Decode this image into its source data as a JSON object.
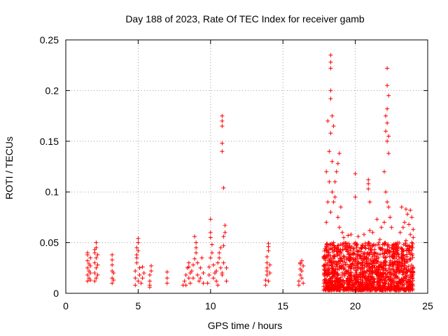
{
  "chart_data": {
    "type": "scatter",
    "title": "Day 188 of 2023, Rate Of TEC Index for receiver gamb",
    "xlabel": "GPS time / hours",
    "ylabel": "ROTI / TECUs",
    "xlim": [
      0,
      25
    ],
    "ylim": [
      0,
      0.25
    ],
    "xticks": [
      0,
      5,
      10,
      15,
      20,
      25
    ],
    "yticks": [
      0,
      0.05,
      0.1,
      0.15,
      0.2,
      0.25
    ],
    "xtick_labels": [
      "0",
      "5",
      "10",
      "15",
      "20",
      "25"
    ],
    "ytick_labels": [
      "0",
      "0.05",
      "0.1",
      "0.15",
      "0.2",
      "0.25"
    ],
    "grid": true,
    "marker": "+",
    "series": [
      {
        "name": "ROTI",
        "color": "#ff0000",
        "points": [
          [
            1.5,
            0.012
          ],
          [
            1.5,
            0.018
          ],
          [
            1.5,
            0.025
          ],
          [
            1.5,
            0.032
          ],
          [
            1.5,
            0.038
          ],
          [
            1.6,
            0.015
          ],
          [
            1.6,
            0.022
          ],
          [
            1.6,
            0.029
          ],
          [
            1.7,
            0.013
          ],
          [
            1.7,
            0.02
          ],
          [
            1.7,
            0.027
          ],
          [
            1.7,
            0.035
          ],
          [
            1.5,
            0.04
          ],
          [
            2.0,
            0.012
          ],
          [
            2.0,
            0.02
          ],
          [
            2.0,
            0.03
          ],
          [
            2.0,
            0.04
          ],
          [
            2.1,
            0.015
          ],
          [
            2.1,
            0.025
          ],
          [
            2.1,
            0.035
          ],
          [
            2.1,
            0.045
          ],
          [
            2.1,
            0.05
          ],
          [
            2.2,
            0.018
          ],
          [
            2.2,
            0.028
          ],
          [
            2.2,
            0.038
          ],
          [
            2.0,
            0.043
          ],
          [
            3.2,
            0.01
          ],
          [
            3.2,
            0.015
          ],
          [
            3.2,
            0.022
          ],
          [
            3.2,
            0.028
          ],
          [
            3.3,
            0.013
          ],
          [
            3.3,
            0.02
          ],
          [
            3.2,
            0.033
          ],
          [
            3.2,
            0.038
          ],
          [
            4.8,
            0.008
          ],
          [
            4.8,
            0.015
          ],
          [
            4.8,
            0.022
          ],
          [
            4.9,
            0.03
          ],
          [
            4.9,
            0.038
          ],
          [
            4.9,
            0.045
          ],
          [
            5.0,
            0.05
          ],
          [
            5.0,
            0.054
          ],
          [
            5.0,
            0.012
          ],
          [
            5.1,
            0.018
          ],
          [
            5.1,
            0.025
          ],
          [
            5.2,
            0.01
          ],
          [
            5.3,
            0.015
          ],
          [
            5.4,
            0.02
          ],
          [
            5.3,
            0.026
          ],
          [
            5.0,
            0.042
          ],
          [
            4.9,
            0.035
          ],
          [
            5.8,
            0.006
          ],
          [
            5.8,
            0.012
          ],
          [
            5.8,
            0.018
          ],
          [
            5.9,
            0.022
          ],
          [
            5.9,
            0.027
          ],
          [
            5.8,
            0.008
          ],
          [
            7.0,
            0.01
          ],
          [
            7.0,
            0.015
          ],
          [
            7.0,
            0.021
          ],
          [
            8.1,
            0.008
          ],
          [
            8.2,
            0.012
          ],
          [
            8.3,
            0.018
          ],
          [
            8.4,
            0.025
          ],
          [
            8.5,
            0.03
          ],
          [
            8.5,
            0.015
          ],
          [
            8.6,
            0.01
          ],
          [
            8.7,
            0.022
          ],
          [
            8.8,
            0.028
          ],
          [
            8.9,
            0.034
          ],
          [
            9.0,
            0.04
          ],
          [
            8.9,
            0.056
          ],
          [
            9.0,
            0.05
          ],
          [
            9.1,
            0.018
          ],
          [
            9.2,
            0.012
          ],
          [
            9.3,
            0.025
          ],
          [
            9.4,
            0.035
          ],
          [
            9.5,
            0.02
          ],
          [
            9.0,
            0.045
          ],
          [
            9.1,
            0.03
          ],
          [
            8.8,
            0.015
          ],
          [
            8.6,
            0.02
          ],
          [
            8.3,
            0.008
          ],
          [
            8.5,
            0.026
          ],
          [
            9.3,
            0.015
          ],
          [
            9.5,
            0.01
          ],
          [
            9.8,
            0.01
          ],
          [
            9.9,
            0.018
          ],
          [
            9.9,
            0.026
          ],
          [
            10.0,
            0.035
          ],
          [
            10.0,
            0.055
          ],
          [
            10.0,
            0.06
          ],
          [
            10.0,
            0.073
          ],
          [
            10.1,
            0.048
          ],
          [
            10.1,
            0.04
          ],
          [
            10.2,
            0.028
          ],
          [
            10.2,
            0.015
          ],
          [
            10.3,
            0.02
          ],
          [
            10.4,
            0.012
          ],
          [
            10.5,
            0.03
          ],
          [
            10.6,
            0.035
          ],
          [
            10.6,
            0.04
          ],
          [
            10.7,
            0.045
          ],
          [
            10.7,
            0.025
          ],
          [
            10.8,
            0.02
          ],
          [
            10.8,
            0.018
          ],
          [
            10.9,
            0.03
          ],
          [
            10.9,
            0.047
          ],
          [
            10.9,
            0.056
          ],
          [
            11.0,
            0.06
          ],
          [
            11.0,
            0.067
          ],
          [
            10.9,
            0.104
          ],
          [
            10.8,
            0.14
          ],
          [
            10.8,
            0.148
          ],
          [
            10.8,
            0.165
          ],
          [
            10.8,
            0.17
          ],
          [
            10.8,
            0.175
          ],
          [
            11.1,
            0.012
          ],
          [
            11.1,
            0.025
          ],
          [
            10.5,
            0.008
          ],
          [
            10.4,
            0.022
          ],
          [
            13.8,
            0.008
          ],
          [
            13.8,
            0.013
          ],
          [
            13.9,
            0.018
          ],
          [
            13.9,
            0.025
          ],
          [
            13.9,
            0.03
          ],
          [
            13.9,
            0.036
          ],
          [
            14.0,
            0.042
          ],
          [
            14.0,
            0.046
          ],
          [
            14.0,
            0.049
          ],
          [
            14.0,
            0.012
          ],
          [
            14.1,
            0.02
          ],
          [
            14.1,
            0.028
          ],
          [
            13.9,
            0.022
          ],
          [
            16.1,
            0.008
          ],
          [
            16.1,
            0.012
          ],
          [
            16.2,
            0.018
          ],
          [
            16.2,
            0.024
          ],
          [
            16.2,
            0.029
          ],
          [
            16.3,
            0.032
          ],
          [
            16.3,
            0.015
          ],
          [
            16.3,
            0.022
          ],
          [
            16.4,
            0.01
          ],
          [
            16.4,
            0.027
          ],
          [
            16.2,
            0.03
          ],
          [
            18.3,
            0.235
          ],
          [
            18.3,
            0.228
          ],
          [
            18.3,
            0.222
          ],
          [
            18.3,
            0.2
          ],
          [
            18.3,
            0.192
          ],
          [
            18.4,
            0.175
          ],
          [
            18.5,
            0.165
          ],
          [
            18.1,
            0.17
          ],
          [
            18.3,
            0.158
          ],
          [
            18.2,
            0.14
          ],
          [
            18.4,
            0.13
          ],
          [
            18.0,
            0.12
          ],
          [
            18.2,
            0.11
          ],
          [
            18.4,
            0.1
          ],
          [
            18.1,
            0.09
          ],
          [
            18.3,
            0.08
          ],
          [
            18.0,
            0.07
          ],
          [
            18.5,
            0.09
          ],
          [
            18.6,
            0.095
          ],
          [
            18.7,
            0.12
          ],
          [
            18.8,
            0.128
          ],
          [
            18.9,
            0.138
          ],
          [
            18.6,
            0.11
          ],
          [
            18.8,
            0.075
          ],
          [
            19.0,
            0.085
          ],
          [
            19.1,
            0.06
          ],
          [
            18.5,
            0.05
          ],
          [
            18.9,
            0.065
          ],
          [
            20.0,
            0.118
          ],
          [
            20.0,
            0.095
          ],
          [
            20.9,
            0.112
          ],
          [
            20.9,
            0.108
          ],
          [
            20.9,
            0.103
          ],
          [
            21.0,
            0.09
          ],
          [
            22.2,
            0.222
          ],
          [
            22.2,
            0.205
          ],
          [
            22.3,
            0.195
          ],
          [
            22.2,
            0.182
          ],
          [
            22.1,
            0.175
          ],
          [
            22.2,
            0.168
          ],
          [
            22.3,
            0.155
          ],
          [
            22.1,
            0.16
          ],
          [
            22.2,
            0.15
          ],
          [
            22.3,
            0.138
          ],
          [
            22.0,
            0.12
          ],
          [
            22.1,
            0.1
          ],
          [
            22.2,
            0.09
          ],
          [
            22.3,
            0.085
          ],
          [
            22.4,
            0.075
          ],
          [
            22.0,
            0.07
          ],
          [
            22.5,
            0.065
          ],
          [
            23.2,
            0.085
          ],
          [
            23.5,
            0.083
          ],
          [
            23.8,
            0.082
          ],
          [
            23.6,
            0.078
          ],
          [
            23.9,
            0.075
          ],
          [
            23.4,
            0.07
          ],
          [
            23.7,
            0.068
          ],
          [
            23.3,
            0.065
          ],
          [
            24.0,
            0.063
          ],
          [
            23.1,
            0.06
          ],
          [
            23.8,
            0.058
          ],
          [
            24.0,
            0.055
          ],
          [
            23.5,
            0.052
          ],
          [
            23.9,
            0.05
          ],
          [
            21.5,
            0.073
          ],
          [
            21.8,
            0.065
          ],
          [
            21.2,
            0.06
          ],
          [
            20.6,
            0.058
          ],
          [
            20.2,
            0.056
          ],
          [
            19.7,
            0.058
          ],
          [
            19.5,
            0.057
          ],
          [
            19.2,
            0.055
          ],
          [
            21.0,
            0.062
          ],
          [
            21.7,
            0.053
          ]
        ]
      }
    ],
    "dense_ranges": [
      {
        "x_start": 17.8,
        "x_end": 24.0,
        "y_min": 0.003,
        "y_max": 0.05,
        "density": "very high"
      }
    ]
  }
}
